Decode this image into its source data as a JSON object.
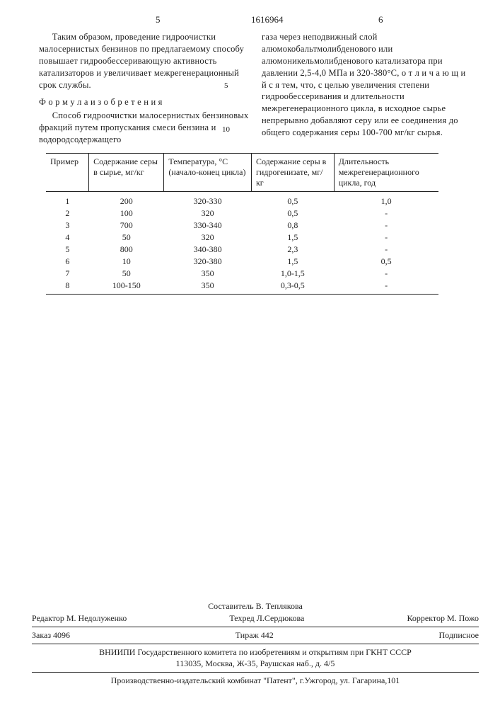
{
  "header": {
    "page_left": "5",
    "doc_number": "1616964",
    "page_right": "6",
    "line5": "5",
    "line10": "10"
  },
  "left_col": {
    "p1": "Таким образом, проведение гидроочистки малосернистых бензинов по предлагаемому способу повышает гидрообессеривающую активность катализаторов и увеличивает межрегенерационный срок службы.",
    "formula_label": "Ф о р м у л а   и з о б р е т е н и я",
    "p2": "Способ гидроочистки малосернистых бензиновых фракций путем пропускания смеси бензина и водородсодержащего"
  },
  "right_col": {
    "p1": "газа через неподвижный слой алюмокобальтмолибденового или алюмоникельмолибденового катализатора при давлении 2,5-4,0 МПа и 320-380°С, о т л и ч а ю щ и й с я  тем, что, с целью увеличения степени гидрообессеривания и длительности межрегенерационного цикла, в исходное сырье непрерывно добавляют серу или ее соединения до общего содержания серы 100-700 мг/кг сырья."
  },
  "table": {
    "headers": [
      "Пример",
      "Содержание серы в сырье, мг/кг",
      "Температура, °С (начало-конец цикла)",
      "Содержание серы в гидрогенизате, мг/кг",
      "Длительность межрегенерационного цикла, год"
    ],
    "rows": [
      [
        "1",
        "200",
        "320-330",
        "0,5",
        "1,0"
      ],
      [
        "2",
        "100",
        "320",
        "0,5",
        "-"
      ],
      [
        "3",
        "700",
        "330-340",
        "0,8",
        "-"
      ],
      [
        "4",
        "50",
        "320",
        "1,5",
        "-"
      ],
      [
        "5",
        "800",
        "340-380",
        "2,3",
        "-"
      ],
      [
        "6",
        "10",
        "320-380",
        "1,5",
        "0,5"
      ],
      [
        "7",
        "50",
        "350",
        "1,0-1,5",
        "-"
      ],
      [
        "8",
        "100-150",
        "350",
        "0,3-0,5",
        "-"
      ]
    ],
    "col_widths": [
      "50px",
      "100px",
      "120px",
      "110px",
      "140px"
    ]
  },
  "footer": {
    "compiler": "Составитель В. Теплякова",
    "editor": "Редактор М. Недолуженко",
    "tech": "Техред Л.Сердюкова",
    "corrector": "Корректор М. Пожо",
    "order": "Заказ 4096",
    "tirazh": "Тираж 442",
    "sign": "Подписное",
    "org1": "ВНИИПИ Государственного комитета по изобретениям и открытиям при ГКНТ СССР",
    "org2": "113035, Москва, Ж-35, Раушская наб., д. 4/5",
    "press": "Производственно-издательский комбинат \"Патент\", г.Ужгород, ул. Гагарина,101"
  }
}
